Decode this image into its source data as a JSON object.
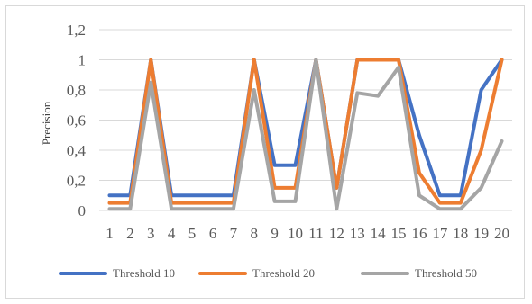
{
  "chart_data": {
    "type": "line",
    "ylabel": "Precision",
    "xlabel": "",
    "categories": [
      "1",
      "2",
      "3",
      "4",
      "5",
      "6",
      "7",
      "8",
      "9",
      "10",
      "11",
      "12",
      "13",
      "14",
      "15",
      "16",
      "17",
      "18",
      "19",
      "20"
    ],
    "y_ticks": [
      "0",
      "0,2",
      "0,4",
      "0,6",
      "0,8",
      "1",
      "1,2"
    ],
    "ylim": [
      0,
      1.2
    ],
    "grid": true,
    "legend_position": "bottom",
    "series": [
      {
        "name": "Threshold 10",
        "color": "#4472C4",
        "values": [
          0.1,
          0.1,
          1,
          0.1,
          0.1,
          0.1,
          0.1,
          1,
          0.3,
          0.3,
          1,
          0.15,
          1,
          1,
          1,
          0.5,
          0.1,
          0.1,
          0.8,
          1
        ]
      },
      {
        "name": "Threshold 20",
        "color": "#ED7D31",
        "values": [
          0.05,
          0.05,
          1,
          0.05,
          0.05,
          0.05,
          0.05,
          1,
          0.15,
          0.15,
          1,
          0.15,
          1,
          1,
          1,
          0.25,
          0.05,
          0.05,
          0.4,
          1
        ]
      },
      {
        "name": "Threshold 50",
        "color": "#A5A5A5",
        "values": [
          0.01,
          0.01,
          0.85,
          0.01,
          0.01,
          0.01,
          0.01,
          0.8,
          0.06,
          0.06,
          1,
          0.01,
          0.78,
          0.76,
          0.95,
          0.1,
          0.01,
          0.01,
          0.15,
          0.46
        ]
      }
    ]
  }
}
